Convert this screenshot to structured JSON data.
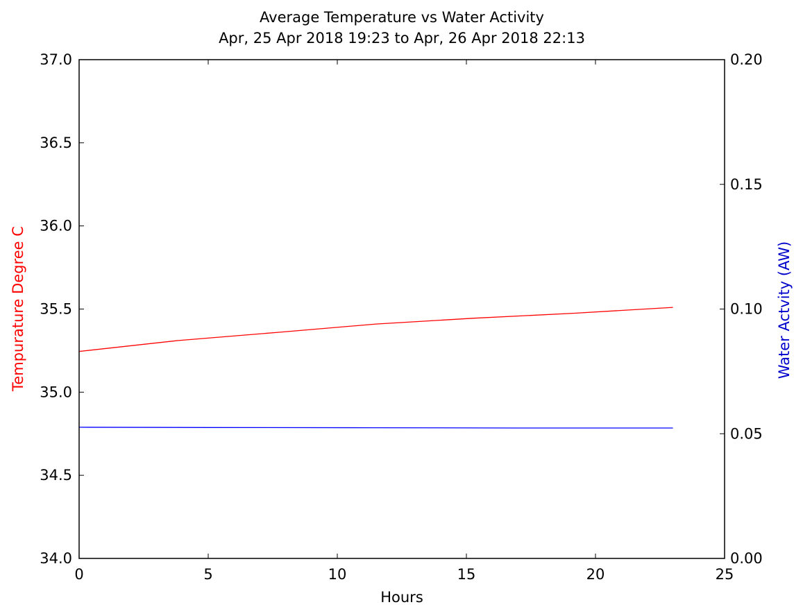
{
  "chart_data": {
    "type": "line",
    "title": "Average Temperature vs Water Activity",
    "subtitle": "Apr, 25 Apr 2018 19:23 to Apr, 26 Apr 2018 22:13",
    "xlabel": "Hours",
    "ylabel_left": "Tempurature Degree C",
    "ylabel_right": "Water Actvity (AW)",
    "xlim": [
      0,
      25
    ],
    "ylim_left": [
      34.0,
      37.0
    ],
    "ylim_right": [
      0.0,
      0.2
    ],
    "x_ticks": [
      "0",
      "5",
      "10",
      "15",
      "20",
      "25"
    ],
    "y_left_ticks": [
      "34.0",
      "34.5",
      "35.0",
      "35.5",
      "36.0",
      "36.5",
      "37.0"
    ],
    "y_right_ticks": [
      "0.00",
      "0.05",
      "0.10",
      "0.15",
      "0.20"
    ],
    "grid": false,
    "series": [
      {
        "axis": "left",
        "color": "#ff0000",
        "points": [
          [
            0,
            35.245
          ],
          [
            3.8,
            35.31
          ],
          [
            7.7,
            35.36
          ],
          [
            11.5,
            35.41
          ],
          [
            15.3,
            35.445
          ],
          [
            19.2,
            35.475
          ],
          [
            23,
            35.51
          ]
        ]
      },
      {
        "axis": "right",
        "color": "#0000ff",
        "points": [
          [
            0,
            0.0526
          ],
          [
            5,
            0.0525
          ],
          [
            11.5,
            0.0524
          ],
          [
            17,
            0.0523
          ],
          [
            23,
            0.0523
          ]
        ]
      }
    ],
    "colors": {
      "left_axis_label": "#ff0000",
      "right_axis_label": "#0000cc"
    }
  }
}
